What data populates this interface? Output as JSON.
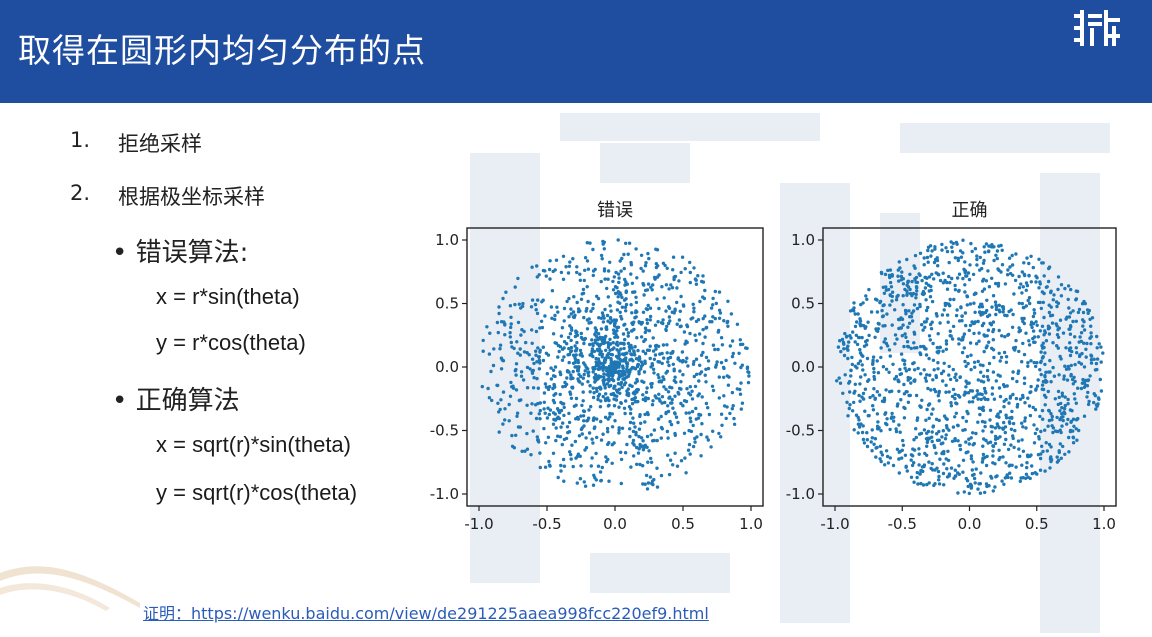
{
  "slide": {
    "title": "取得在圆形内均匀分布的点",
    "list": [
      {
        "num": "1.",
        "text": "拒绝采样"
      },
      {
        "num": "2.",
        "text": "根据极坐标采样"
      }
    ],
    "wrong": {
      "label": "错误算法:",
      "x": "x = r*sin(theta)",
      "y": "y = r*cos(theta)"
    },
    "right": {
      "label": "正确算法",
      "x": "x = sqrt(r)*sin(theta)",
      "y": "y = sqrt(r)*cos(theta)"
    },
    "reference": "证明：https://wenku.baidu.com/view/de291225aaea998fcc220ef9.html"
  },
  "chart_data": [
    {
      "type": "scatter",
      "title": "错误",
      "xlim": [
        -1.0,
        1.0
      ],
      "ylim": [
        -1.0,
        1.0
      ],
      "xticks": [
        "-1.0",
        "-0.5",
        "0.0",
        "0.5",
        "1.0"
      ],
      "yticks": [
        "1.0",
        "0.5",
        "0.0",
        "-0.5",
        "-1.0"
      ],
      "distribution": "r uniform in [0,1], theta uniform in [0,2π] (dense at center)",
      "point_count": 1500,
      "color": "#1f77b4"
    },
    {
      "type": "scatter",
      "title": "正确",
      "xlim": [
        -1.0,
        1.0
      ],
      "ylim": [
        -1.0,
        1.0
      ],
      "xticks": [
        "-1.0",
        "-0.5",
        "0.0",
        "0.5",
        "1.0"
      ],
      "yticks": [
        "1.0",
        "0.5",
        "0.0",
        "-0.5",
        "-1.0"
      ],
      "distribution": "sqrt(r) with r uniform in [0,1], theta uniform in [0,2π] (uniform in disk)",
      "point_count": 1500,
      "color": "#1f77b4"
    }
  ]
}
